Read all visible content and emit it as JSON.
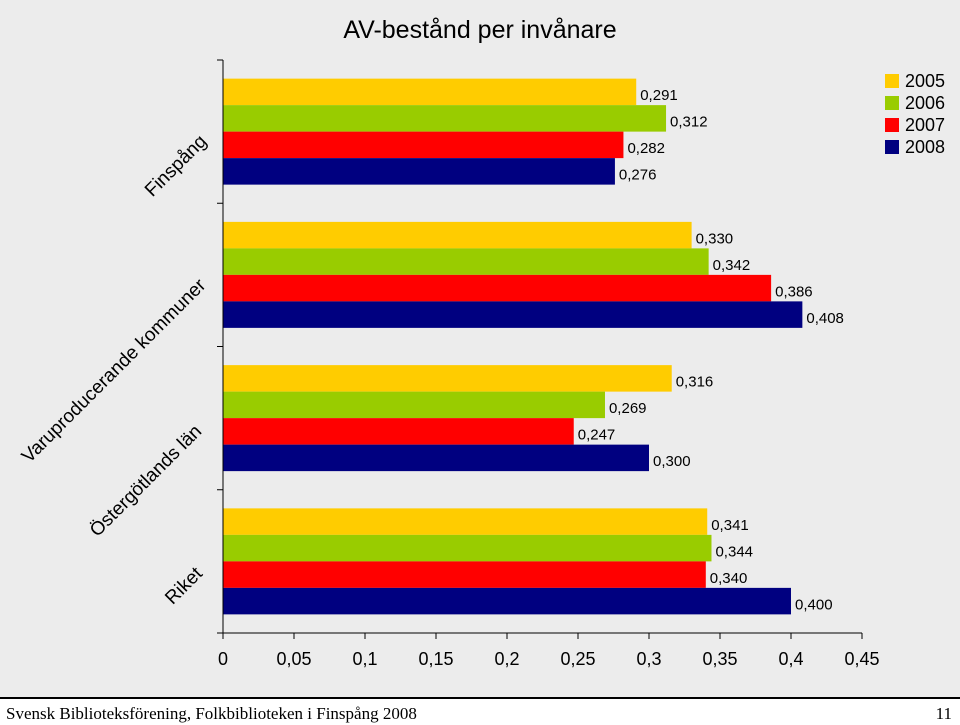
{
  "chart_data": {
    "type": "bar",
    "orientation": "horizontal",
    "title": "AV-bestånd per invånare",
    "categories": [
      "Finspång",
      "Varuproducerande kommuner",
      "Östergötlands län",
      "Riket"
    ],
    "series": [
      {
        "name": "2005",
        "color": "#ffcc00",
        "values": [
          0.291,
          0.33,
          0.316,
          0.341
        ],
        "labels": [
          "0,291",
          "0,330",
          "0,316",
          "0,341"
        ]
      },
      {
        "name": "2006",
        "color": "#99cc00",
        "values": [
          0.312,
          0.342,
          0.269,
          0.344
        ],
        "labels": [
          "0,312",
          "0,342",
          "0,269",
          "0,344"
        ]
      },
      {
        "name": "2007",
        "color": "#ff0000",
        "values": [
          0.282,
          0.386,
          0.247,
          0.34
        ],
        "labels": [
          "0,282",
          "0,386",
          "0,247",
          "0,340"
        ]
      },
      {
        "name": "2008",
        "color": "#000080",
        "values": [
          0.276,
          0.408,
          0.3,
          0.4
        ],
        "labels": [
          "0,276",
          "0,408",
          "0,300",
          "0,400"
        ]
      }
    ],
    "xlim": [
      0,
      0.45
    ],
    "x_ticks": [
      "0",
      "0,05",
      "0,1",
      "0,15",
      "0,2",
      "0,25",
      "0,3",
      "0,35",
      "0,4",
      "0,45"
    ],
    "legend_position": "top-right",
    "grid": false,
    "xlabel": "",
    "ylabel": ""
  },
  "footer": {
    "left": "Svensk Biblioteksförening, Folkbiblioteken i Finspång 2008",
    "page": "11"
  }
}
